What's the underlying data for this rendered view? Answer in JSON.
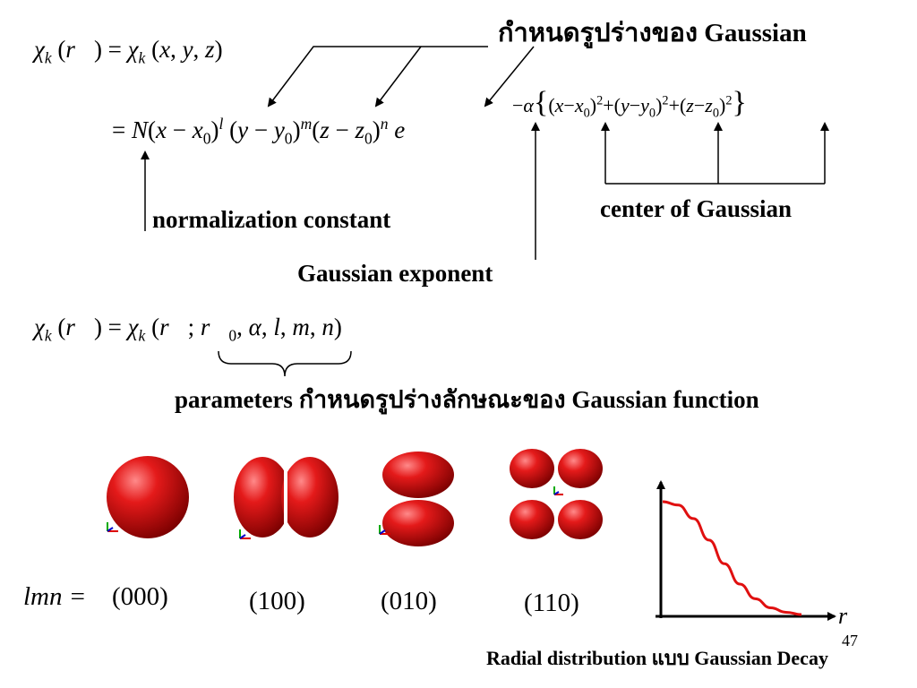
{
  "header_title": "กำหนดรูปร่างของ Gaussian",
  "labels": {
    "normalization": "normalization constant",
    "exponent": "Gaussian exponent",
    "center": "center of Gaussian",
    "parameters": "parameters กำหนดรูปร่างลักษณะของ Gaussian function",
    "radial": "Radial distribution แบบ Gaussian Decay",
    "page_number": "47"
  },
  "orbitals": {
    "lmn_prefix": "lmn =",
    "items": [
      "(000)",
      "(100)",
      "(010)",
      "(110)"
    ],
    "color": "#e01010"
  },
  "axis_label": "r",
  "chart_data": {
    "type": "line",
    "x_label": "r",
    "series": [
      {
        "values": [
          1.0,
          0.97,
          0.85,
          0.66,
          0.45,
          0.27,
          0.14,
          0.06,
          0.02,
          0.0
        ]
      }
    ],
    "line_color": "#e01010"
  }
}
